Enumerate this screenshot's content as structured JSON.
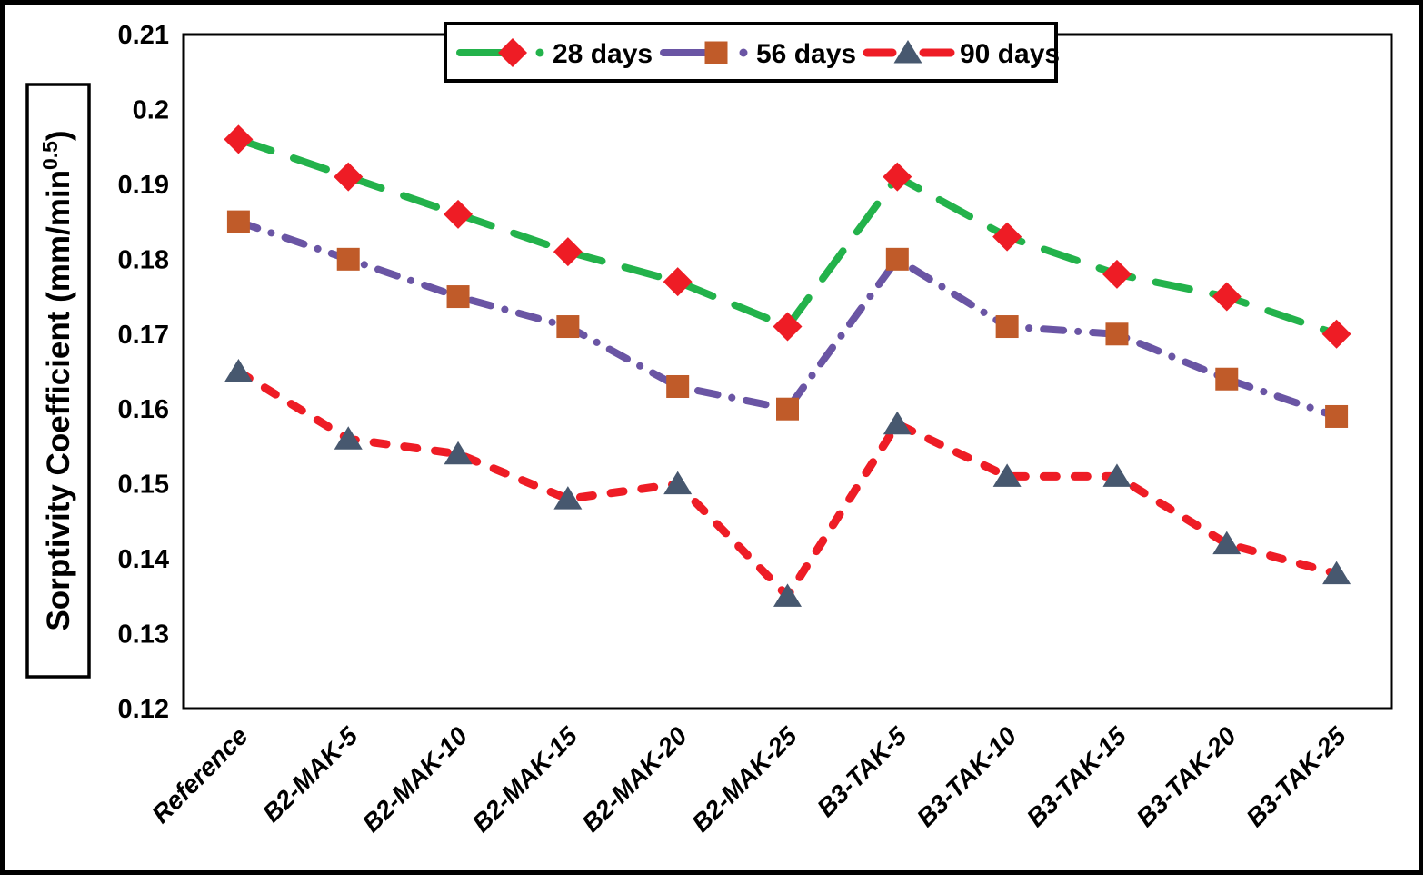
{
  "figure": {
    "outer_border_color": "#000000",
    "background": "#ffffff"
  },
  "chart_data": {
    "type": "line",
    "title": "",
    "xlabel": "",
    "ylabel": "Sorptivity Coefficient (mm/min^0.5)",
    "ylabel_main": "Sorptivity Coefficient (mm/min",
    "ylabel_superscript": "0.5",
    "ylabel_close": ")",
    "ylim": [
      0.12,
      0.21
    ],
    "ytick_step": 0.01,
    "ytick_labels_top_to_bottom": [
      "0.21",
      "0.2",
      "0.19",
      "0.18",
      "0.17",
      "0.16",
      "0.15",
      "0.14",
      "0.13",
      "0.12"
    ],
    "grid": false,
    "legend_position": "top-center",
    "categories": [
      "Reference",
      "B2-MAK-5",
      "B2-MAK-10",
      "B2-MAK-15",
      "B2-MAK-20",
      "B2-MAK-25",
      "B3-TAK-5",
      "B3-TAK-10",
      "B3-TAK-15",
      "B3-TAK-20",
      "B3-TAK-25"
    ],
    "series": [
      {
        "name": "28 days",
        "line_color": "#23B24B",
        "line_style": "long-dash",
        "marker": "diamond",
        "marker_color": "#EE1C25",
        "values": [
          0.196,
          0.191,
          0.186,
          0.181,
          0.177,
          0.171,
          0.191,
          0.183,
          0.178,
          0.175,
          0.17
        ]
      },
      {
        "name": "56 days",
        "line_color": "#6A55A4",
        "line_style": "dash-dot",
        "marker": "square",
        "marker_color": "#C05B29",
        "values": [
          0.185,
          0.18,
          0.175,
          0.171,
          0.163,
          0.16,
          0.18,
          0.171,
          0.17,
          0.164,
          0.159
        ]
      },
      {
        "name": "90 days",
        "line_color": "#EE1C25",
        "line_style": "dash",
        "marker": "triangle",
        "marker_color": "#47586F",
        "values": [
          0.165,
          0.156,
          0.154,
          0.148,
          0.15,
          0.135,
          0.158,
          0.151,
          0.151,
          0.142,
          0.138
        ]
      }
    ]
  }
}
